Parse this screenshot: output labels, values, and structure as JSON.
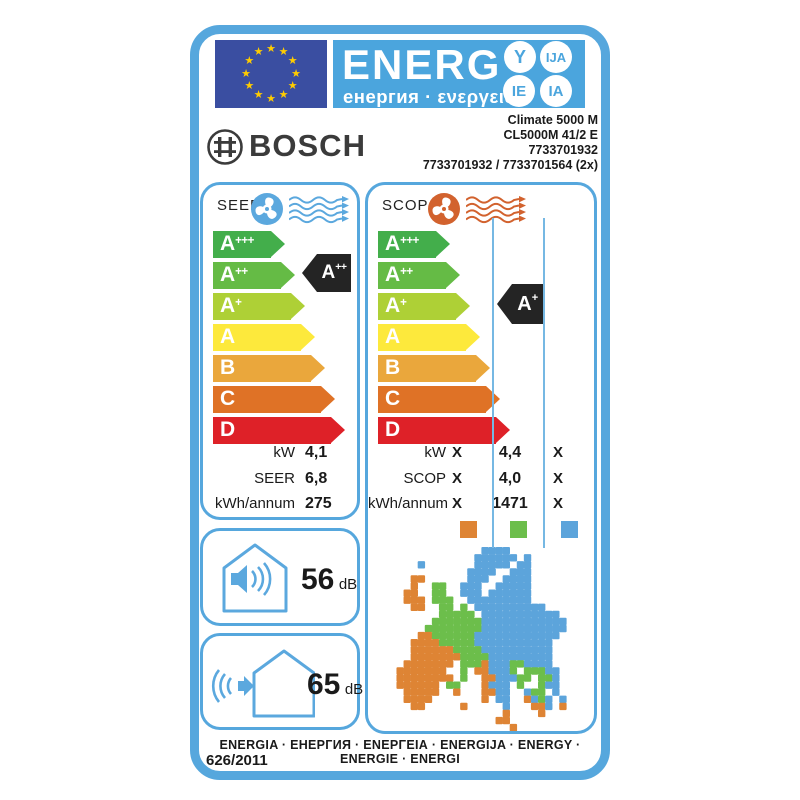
{
  "header": {
    "word": "ENERG",
    "subtitle": "енергия · ενεργεια",
    "badges": [
      "Y",
      "IJA",
      "IE",
      "IA"
    ]
  },
  "brand": {
    "name": "BOSCH"
  },
  "model_lines": [
    "Climate 5000 M",
    "CL5000M 41/2 E",
    "7733701932",
    "7733701932 / 7733701564 (2x)"
  ],
  "scale": [
    {
      "letter": "A",
      "sup": "+++",
      "color": "#43AE4B"
    },
    {
      "letter": "A",
      "sup": "++",
      "color": "#65BB45"
    },
    {
      "letter": "A",
      "sup": "+",
      "color": "#AED036"
    },
    {
      "letter": "A",
      "sup": "",
      "color": "#FDE93C"
    },
    {
      "letter": "B",
      "sup": "",
      "color": "#EAA73C"
    },
    {
      "letter": "C",
      "sup": "",
      "color": "#DF7226"
    },
    {
      "letter": "D",
      "sup": "",
      "color": "#DE2128"
    }
  ],
  "seer": {
    "title": "SEER",
    "rating": {
      "letter": "A",
      "sup": "++"
    },
    "values": [
      {
        "label": "kW",
        "value": "4,1"
      },
      {
        "label": "SEER",
        "value": "6,8"
      },
      {
        "label": "kWh/annum",
        "value": "275"
      }
    ]
  },
  "scop": {
    "title": "SCOP",
    "rating": {
      "letter": "A",
      "sup": "+"
    },
    "values": [
      {
        "label": "kW",
        "cols": [
          "X",
          "4,4",
          "X"
        ]
      },
      {
        "label": "SCOP",
        "cols": [
          "X",
          "4,0",
          "X"
        ]
      },
      {
        "label": "kWh/annum",
        "cols": [
          "X",
          "1471",
          "X"
        ]
      }
    ],
    "zones": [
      {
        "name": "warmer-zone",
        "color": "#DE8434"
      },
      {
        "name": "average-zone",
        "color": "#6CBE4B"
      },
      {
        "name": "colder-zone",
        "color": "#5CA4DB"
      }
    ]
  },
  "noise": {
    "indoor": {
      "value": "56",
      "unit": "dB"
    },
    "outdoor": {
      "value": "65",
      "unit": "dB"
    }
  },
  "footer": {
    "languages": "ENERGIA · ЕНЕРГИЯ · ΕΝΕΡΓΕΙΑ · ENERGIJA · ENERGY · ENERGIE · ENERGI",
    "regulation": "626/2011"
  },
  "colors": {
    "ui_blue": "#56A7DD",
    "panel_blue": "#4BA5DD",
    "flag_blue": "#3A4EA1",
    "star_yellow": "#FFCC00",
    "black_arrow": "#242424",
    "seer_accent": "#5BA8DE",
    "scop_accent": "#D2622E"
  }
}
